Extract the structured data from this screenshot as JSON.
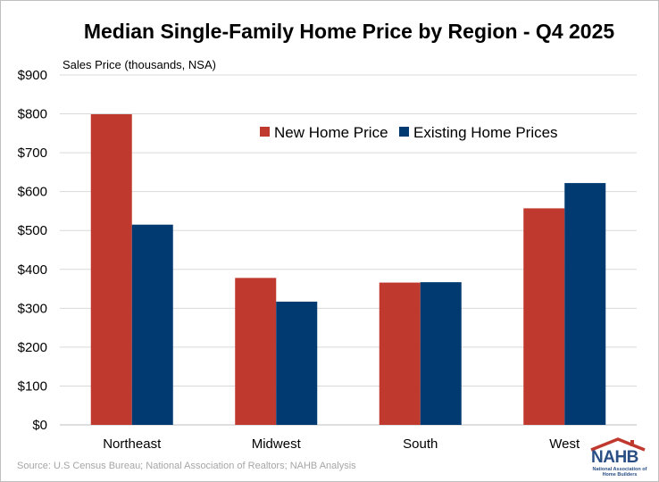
{
  "chart_data": {
    "type": "bar",
    "title": "Median Single-Family Home Price by Region - Q4 2025",
    "ylabel": "Sales Price (thousands, NSA)",
    "xlabel": "",
    "categories": [
      "Northeast",
      "Midwest",
      "South",
      "West"
    ],
    "series": [
      {
        "name": "New Home Price",
        "color": "#c0392f",
        "values": [
          799,
          378,
          366,
          557
        ]
      },
      {
        "name": "Existing Home Prices",
        "color": "#003a70",
        "values": [
          515,
          317,
          367,
          622
        ]
      }
    ],
    "ylim": [
      0,
      900
    ],
    "yticks": [
      0,
      100,
      200,
      300,
      400,
      500,
      600,
      700,
      800,
      900
    ],
    "ytick_labels": [
      "$0",
      "$100",
      "$200",
      "$300",
      "$400",
      "$500",
      "$600",
      "$700",
      "$800",
      "$900"
    ],
    "grid": true,
    "legend_position": "top-right",
    "source": "Source: U.S Census Bureau; National Association of Realtors; NAHB Analysis"
  },
  "logo": {
    "word": "NAHB",
    "subtitle": "National Association of Home Builders",
    "color": "#2a4f85",
    "roof_color": "#c0392f"
  }
}
